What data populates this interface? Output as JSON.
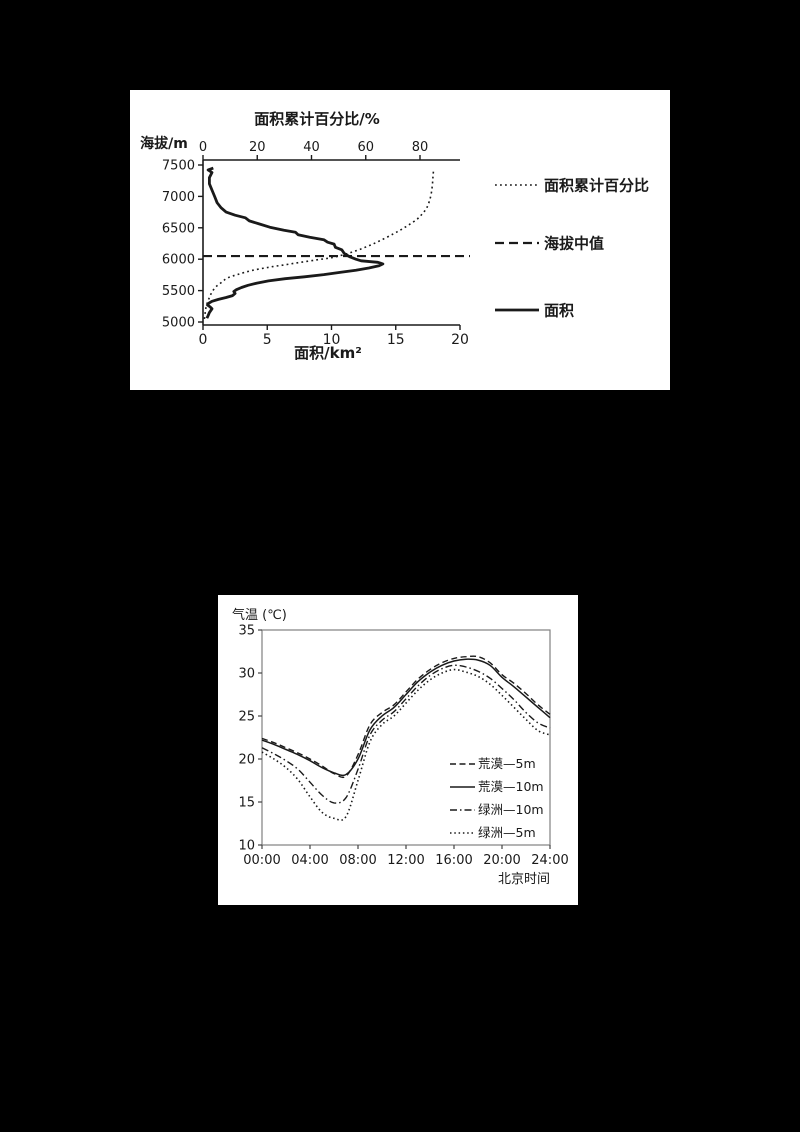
{
  "page": {
    "background_color": "#000000",
    "panel_color": "#ffffff",
    "ink_color": "#1a1a1a"
  },
  "chart_data": [
    {
      "id": "hypsometric",
      "type": "line",
      "top_axis": {
        "label": "面积累计百分比/%",
        "ticks": [
          0,
          20,
          40,
          60,
          80
        ],
        "range": [
          0,
          95
        ]
      },
      "left_axis": {
        "label": "海拔/m",
        "ticks": [
          7500,
          7000,
          6500,
          6000,
          5500,
          5000
        ],
        "range": [
          5000,
          7500
        ]
      },
      "bottom_axis": {
        "label": "面积/km²",
        "ticks": [
          0,
          5,
          10,
          15,
          20
        ],
        "range": [
          0,
          20
        ]
      },
      "legend": [
        {
          "label": "面积累计百分比",
          "style": "dotted"
        },
        {
          "label": "海拔中值",
          "style": "dashed"
        },
        {
          "label": "面积",
          "style": "solid"
        }
      ],
      "median_line": {
        "name": "海拔中值",
        "style": "dashed",
        "elevation": 6050
      },
      "series": [
        {
          "id": "cumulative-area-percentage",
          "name": "面积累计百分比",
          "style": "dotted",
          "x_axis": "top",
          "points": [
            [
              0.5,
              5050
            ],
            [
              0.8,
              5150
            ],
            [
              1.2,
              5250
            ],
            [
              2,
              5350
            ],
            [
              3,
              5450
            ],
            [
              4.5,
              5550
            ],
            [
              6.5,
              5620
            ],
            [
              9,
              5700
            ],
            [
              13,
              5760
            ],
            [
              18,
              5820
            ],
            [
              24,
              5870
            ],
            [
              30,
              5910
            ],
            [
              36,
              5950
            ],
            [
              42,
              5990
            ],
            [
              47,
              6020
            ],
            [
              50,
              6050
            ],
            [
              54,
              6100
            ],
            [
              58,
              6160
            ],
            [
              62,
              6230
            ],
            [
              66,
              6310
            ],
            [
              70,
              6400
            ],
            [
              73,
              6470
            ],
            [
              76,
              6550
            ],
            [
              79,
              6640
            ],
            [
              81,
              6730
            ],
            [
              82.5,
              6820
            ],
            [
              83.5,
              6930
            ],
            [
              84.2,
              7060
            ],
            [
              84.6,
              7200
            ],
            [
              84.8,
              7320
            ],
            [
              85,
              7430
            ]
          ]
        },
        {
          "id": "area",
          "name": "面积",
          "style": "solid",
          "x_axis": "bottom",
          "points": [
            [
              0.8,
              7450
            ],
            [
              0.4,
              7420
            ],
            [
              0.7,
              7380
            ],
            [
              0.5,
              7300
            ],
            [
              0.5,
              7200
            ],
            [
              0.7,
              7100
            ],
            [
              0.9,
              7000
            ],
            [
              1.1,
              6900
            ],
            [
              1.4,
              6820
            ],
            [
              1.8,
              6750
            ],
            [
              2.5,
              6700
            ],
            [
              3.3,
              6660
            ],
            [
              3.6,
              6610
            ],
            [
              4.4,
              6560
            ],
            [
              5.2,
              6510
            ],
            [
              6.3,
              6460
            ],
            [
              7.2,
              6430
            ],
            [
              7.4,
              6390
            ],
            [
              8.3,
              6350
            ],
            [
              9.4,
              6310
            ],
            [
              9.7,
              6270
            ],
            [
              10.2,
              6240
            ],
            [
              10.3,
              6190
            ],
            [
              10.8,
              6150
            ],
            [
              11.0,
              6090
            ],
            [
              11.4,
              6040
            ],
            [
              11.9,
              6000
            ],
            [
              12.3,
              5975
            ],
            [
              13.6,
              5950
            ],
            [
              14.0,
              5925
            ],
            [
              13.7,
              5895
            ],
            [
              12.9,
              5860
            ],
            [
              11.9,
              5825
            ],
            [
              10.8,
              5795
            ],
            [
              9.4,
              5755
            ],
            [
              7.9,
              5720
            ],
            [
              6.4,
              5690
            ],
            [
              5.1,
              5655
            ],
            [
              4.2,
              5620
            ],
            [
              3.5,
              5585
            ],
            [
              3.0,
              5550
            ],
            [
              2.6,
              5515
            ],
            [
              2.4,
              5485
            ],
            [
              2.5,
              5455
            ],
            [
              2.3,
              5420
            ],
            [
              1.8,
              5390
            ],
            [
              1.2,
              5360
            ],
            [
              0.7,
              5330
            ],
            [
              0.45,
              5300
            ],
            [
              0.35,
              5270
            ],
            [
              0.55,
              5240
            ],
            [
              0.7,
              5210
            ],
            [
              0.6,
              5180
            ],
            [
              0.5,
              5150
            ],
            [
              0.4,
              5100
            ],
            [
              0.3,
              5060
            ]
          ]
        }
      ]
    },
    {
      "id": "diurnal-temperature",
      "type": "line",
      "y_axis": {
        "label": "气温 (℃)",
        "ticks": [
          35,
          30,
          25,
          20,
          15,
          10
        ],
        "range": [
          10,
          35
        ]
      },
      "x_axis": {
        "label": "北京时间",
        "tick_labels": [
          "00:00",
          "04:00",
          "08:00",
          "12:00",
          "16:00",
          "20:00",
          "24:00"
        ],
        "tick_hours": [
          0,
          4,
          8,
          12,
          16,
          20,
          24
        ],
        "range_hours": [
          0,
          24
        ]
      },
      "legend": [
        {
          "label": "荒漠—5m",
          "style": "dashed"
        },
        {
          "label": "荒漠—10m",
          "style": "solid"
        },
        {
          "label": "绿洲—10m",
          "style": "dashdot"
        },
        {
          "label": "绿洲—5m",
          "style": "dotted"
        }
      ],
      "series": [
        {
          "id": "desert-5m",
          "name": "荒漠—5m",
          "style": "dashed",
          "values": [
            22.4,
            21.9,
            21.3,
            20.7,
            20.0,
            19.2,
            18.3,
            18.0,
            20.5,
            24.0,
            25.4,
            26.3,
            27.8,
            29.3,
            30.4,
            31.2,
            31.7,
            31.9,
            31.9,
            31.2,
            29.8,
            28.8,
            27.6,
            26.3,
            25.2
          ]
        },
        {
          "id": "desert-10m",
          "name": "荒漠—10m",
          "style": "solid",
          "values": [
            22.2,
            21.7,
            21.1,
            20.5,
            19.8,
            19.0,
            18.4,
            18.2,
            20.0,
            23.4,
            25.0,
            26.0,
            27.5,
            29.0,
            30.1,
            30.9,
            31.4,
            31.6,
            31.5,
            30.9,
            29.5,
            28.4,
            27.2,
            26.0,
            24.8
          ]
        },
        {
          "id": "oasis-10m",
          "name": "绿洲—10m",
          "style": "dashdot",
          "values": [
            21.3,
            20.6,
            19.8,
            18.8,
            17.3,
            15.8,
            14.9,
            15.5,
            18.8,
            22.8,
            24.5,
            25.5,
            27.0,
            28.5,
            29.7,
            30.5,
            30.9,
            30.7,
            30.2,
            29.4,
            28.2,
            26.9,
            25.4,
            24.2,
            23.6
          ]
        },
        {
          "id": "oasis-5m",
          "name": "绿洲—5m",
          "style": "dotted",
          "values": [
            20.8,
            20.0,
            19.0,
            17.6,
            15.6,
            13.8,
            13.1,
            13.3,
            17.5,
            22.0,
            24.0,
            25.0,
            26.5,
            28.0,
            29.2,
            30.0,
            30.4,
            30.1,
            29.6,
            28.7,
            27.4,
            26.0,
            24.6,
            23.3,
            22.8
          ]
        }
      ]
    }
  ]
}
